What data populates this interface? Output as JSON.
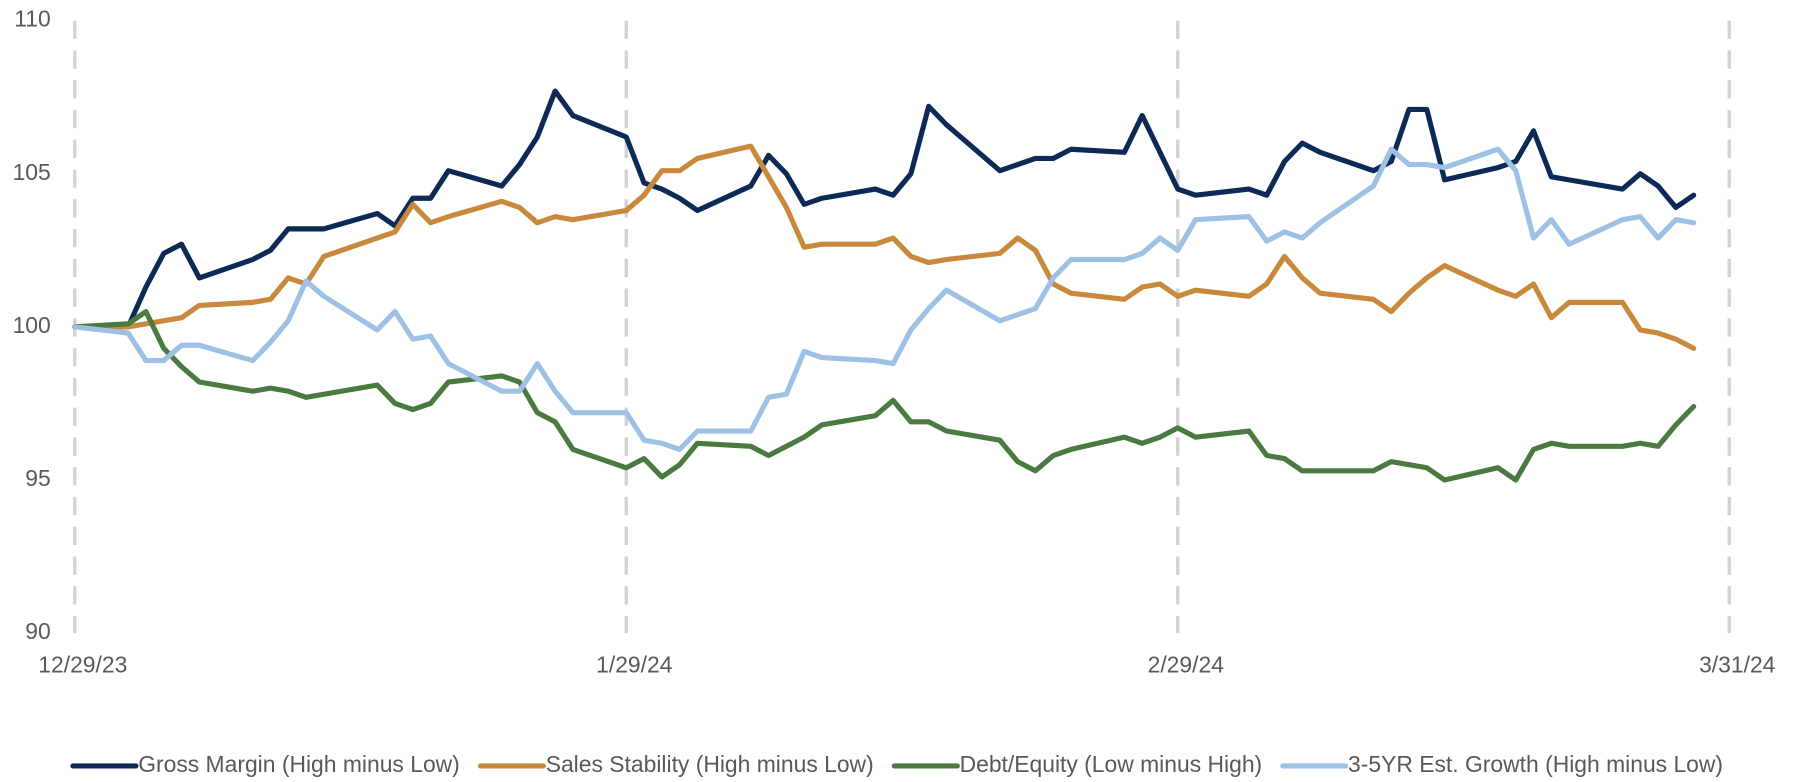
{
  "chart_data": {
    "type": "line",
    "x": [
      "12/29/23",
      "1/1/24",
      "1/2/24",
      "1/3/24",
      "1/4/24",
      "1/5/24",
      "1/8/24",
      "1/9/24",
      "1/10/24",
      "1/11/24",
      "1/12/24",
      "1/15/24",
      "1/16/24",
      "1/17/24",
      "1/18/24",
      "1/19/24",
      "1/22/24",
      "1/23/24",
      "1/24/24",
      "1/25/24",
      "1/26/24",
      "1/29/24",
      "1/30/24",
      "1/31/24",
      "2/1/24",
      "2/2/24",
      "2/5/24",
      "2/6/24",
      "2/7/24",
      "2/8/24",
      "2/9/24",
      "2/12/24",
      "2/13/24",
      "2/14/24",
      "2/15/24",
      "2/16/24",
      "2/19/24",
      "2/20/24",
      "2/21/24",
      "2/22/24",
      "2/23/24",
      "2/26/24",
      "2/27/24",
      "2/28/24",
      "2/29/24",
      "3/1/24",
      "3/4/24",
      "3/5/24",
      "3/6/24",
      "3/7/24",
      "3/8/24",
      "3/11/24",
      "3/12/24",
      "3/13/24",
      "3/14/24",
      "3/15/24",
      "3/18/24",
      "3/19/24",
      "3/20/24",
      "3/21/24",
      "3/22/24",
      "3/25/24",
      "3/26/24",
      "3/27/24",
      "3/28/24",
      "3/29/24"
    ],
    "series": [
      {
        "name": "Gross Margin (High minus Low)",
        "color": "#0c2a55",
        "values": [
          100,
          100,
          101.3,
          102.4,
          102.7,
          101.6,
          102.2,
          102.5,
          103.2,
          103.2,
          103.2,
          103.7,
          103.3,
          104.2,
          104.2,
          105.1,
          104.6,
          105.3,
          106.2,
          107.7,
          106.9,
          106.2,
          104.7,
          104.5,
          104.2,
          103.8,
          104.6,
          105.6,
          105.0,
          104.0,
          104.2,
          104.5,
          104.3,
          105.0,
          107.2,
          106.6,
          105.1,
          105.3,
          105.5,
          105.5,
          105.8,
          105.7,
          106.9,
          105.7,
          104.5,
          104.3,
          104.5,
          104.3,
          105.4,
          106.0,
          105.7,
          105.1,
          105.4,
          107.1,
          107.1,
          104.8,
          105.2,
          105.4,
          106.4,
          104.9,
          104.8,
          104.5,
          105.0,
          104.6,
          103.9,
          104.3
        ]
      },
      {
        "name": "Sales Stability (High minus Low)",
        "color": "#c8893c",
        "values": [
          100,
          100.0,
          100.1,
          100.2,
          100.3,
          100.7,
          100.8,
          100.9,
          101.6,
          101.4,
          102.3,
          102.9,
          103.1,
          104.0,
          103.4,
          103.6,
          104.1,
          103.9,
          103.4,
          103.6,
          103.5,
          103.8,
          104.3,
          105.1,
          105.1,
          105.5,
          105.9,
          104.9,
          103.9,
          102.6,
          102.7,
          102.7,
          102.9,
          102.3,
          102.1,
          102.2,
          102.4,
          102.9,
          102.5,
          101.4,
          101.1,
          100.9,
          101.3,
          101.4,
          101.0,
          101.2,
          101.0,
          101.4,
          102.3,
          101.6,
          101.1,
          100.9,
          100.5,
          101.1,
          101.6,
          102.0,
          101.2,
          101.0,
          101.4,
          100.3,
          100.8,
          100.8,
          99.9,
          99.8,
          99.6,
          99.3
        ]
      },
      {
        "name": "Debt/Equity (Low minus High)",
        "color": "#4a7a3f",
        "values": [
          100,
          100.1,
          100.5,
          99.3,
          98.7,
          98.2,
          97.9,
          98.0,
          97.9,
          97.7,
          97.8,
          98.1,
          97.5,
          97.3,
          97.5,
          98.2,
          98.4,
          98.2,
          97.2,
          96.9,
          96.0,
          95.4,
          95.7,
          95.1,
          95.5,
          96.2,
          96.1,
          95.8,
          96.1,
          96.4,
          96.8,
          97.1,
          97.6,
          96.9,
          96.9,
          96.6,
          96.3,
          95.6,
          95.3,
          95.8,
          96.0,
          96.4,
          96.2,
          96.4,
          96.7,
          96.4,
          96.6,
          95.8,
          95.7,
          95.3,
          95.3,
          95.3,
          95.6,
          95.5,
          95.4,
          95.0,
          95.4,
          95.0,
          96.0,
          96.2,
          96.1,
          96.1,
          96.2,
          96.1,
          96.8,
          97.4
        ]
      },
      {
        "name": "3-5YR Est. Growth (High minus Low)",
        "color": "#9dc1e4",
        "values": [
          100,
          99.8,
          98.9,
          98.9,
          99.4,
          99.4,
          98.9,
          99.5,
          100.2,
          101.5,
          101.0,
          99.9,
          100.5,
          99.6,
          99.7,
          98.8,
          97.9,
          97.9,
          98.8,
          97.9,
          97.2,
          97.2,
          96.3,
          96.2,
          96.0,
          96.6,
          96.6,
          97.7,
          97.8,
          99.2,
          99.0,
          98.9,
          98.8,
          99.9,
          100.6,
          101.2,
          100.2,
          100.4,
          100.6,
          101.6,
          102.2,
          102.2,
          102.4,
          102.9,
          102.5,
          103.5,
          103.6,
          102.8,
          103.1,
          102.9,
          103.4,
          104.6,
          105.8,
          105.3,
          105.3,
          105.2,
          105.8,
          105.1,
          102.9,
          103.5,
          102.7,
          103.5,
          103.6,
          102.9,
          103.5,
          103.4
        ]
      }
    ],
    "xlim": [
      "12/29/23",
      "3/31/24"
    ],
    "xticks": [
      "12/29/23",
      "1/29/24",
      "2/29/24",
      "3/31/24"
    ],
    "ylim": [
      90,
      110
    ],
    "yticks": [
      90,
      95,
      100,
      105,
      110
    ],
    "grid": "x",
    "legend": "bottom"
  }
}
